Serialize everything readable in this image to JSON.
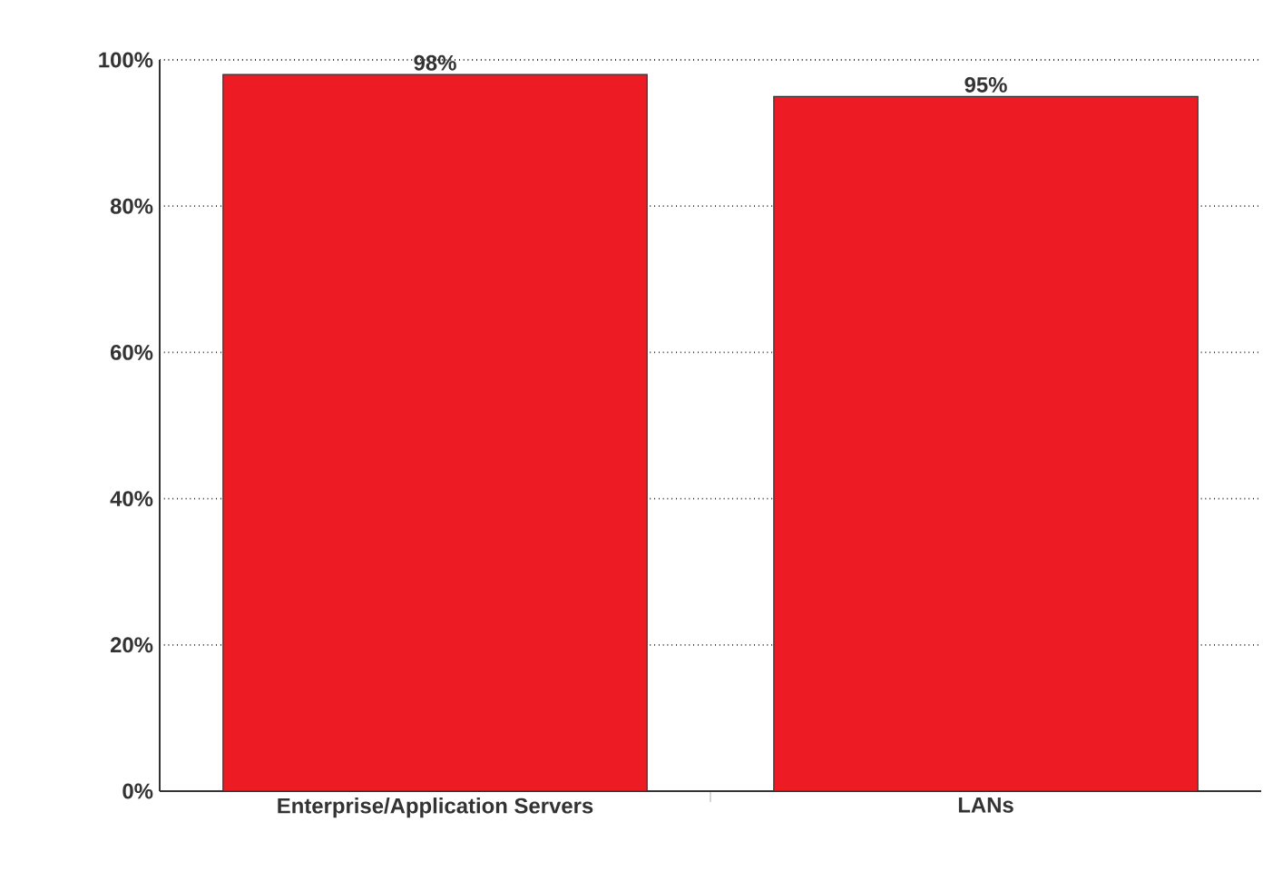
{
  "chart_data": {
    "type": "bar",
    "categories": [
      "Enterprise/Application Servers",
      "LANs"
    ],
    "values": [
      98,
      95
    ],
    "value_labels": [
      "98%",
      "95%"
    ],
    "color": "#ed1c24",
    "ylim": [
      0,
      100
    ],
    "yticks": [
      {
        "value": 0,
        "label": "0%"
      },
      {
        "value": 20,
        "label": "20%"
      },
      {
        "value": 40,
        "label": "40%"
      },
      {
        "value": 60,
        "label": "60%"
      },
      {
        "value": 80,
        "label": "80%"
      },
      {
        "value": 100,
        "label": "100%"
      }
    ],
    "grid": "y"
  }
}
